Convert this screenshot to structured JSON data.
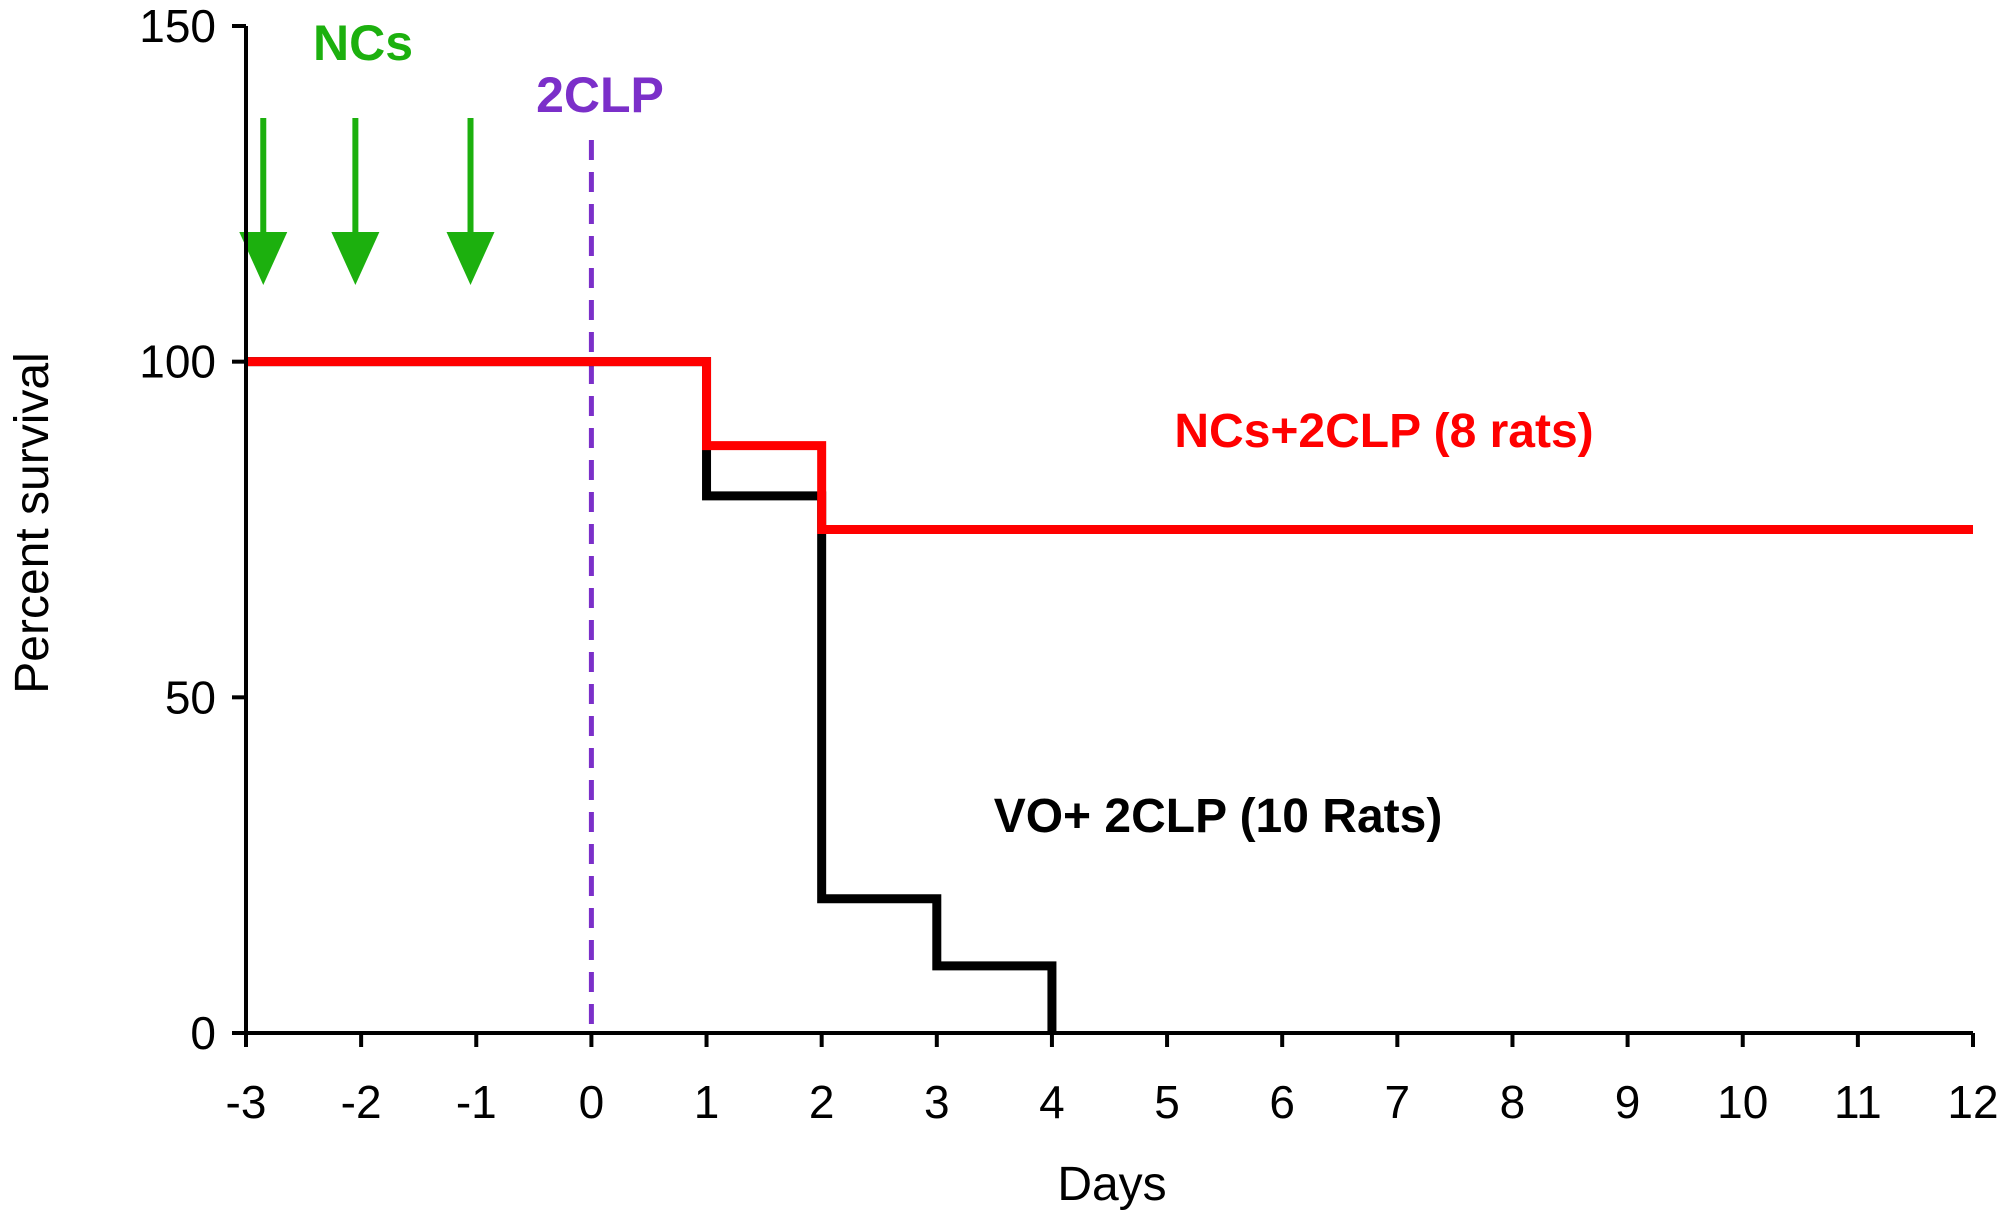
{
  "chart_data": {
    "type": "line",
    "step": true,
    "xlabel": "Days",
    "ylabel": "Percent survival",
    "xlim": [
      -3,
      12
    ],
    "ylim": [
      0,
      150
    ],
    "xticks": [
      "-3",
      "-2",
      "-1",
      "0",
      "1",
      "2",
      "3",
      "4",
      "5",
      "6",
      "7",
      "8",
      "9",
      "10",
      "11",
      "12"
    ],
    "yticks": [
      "0",
      "50",
      "100",
      "150"
    ],
    "grid": false,
    "series": [
      {
        "name": "NCs+2CLP (8 rats)",
        "color": "#ff0000",
        "x": [
          -3,
          1,
          2,
          12
        ],
        "y": [
          100,
          87.5,
          75,
          75
        ]
      },
      {
        "name": "VO+ 2CLP (10 Rats)",
        "color": "#000000",
        "x": [
          -3,
          1,
          2,
          3,
          4
        ],
        "y": [
          100,
          80,
          20,
          10,
          0
        ]
      }
    ],
    "annotations": {
      "ncs_label": "NCs",
      "ncs_color": "#1cb00e",
      "ncs_arrow_days": [
        -2.85,
        -2.05,
        -1.05
      ],
      "clp_label": "2CLP",
      "clp_color": "#7b2fc9",
      "clp_day": 0
    }
  }
}
